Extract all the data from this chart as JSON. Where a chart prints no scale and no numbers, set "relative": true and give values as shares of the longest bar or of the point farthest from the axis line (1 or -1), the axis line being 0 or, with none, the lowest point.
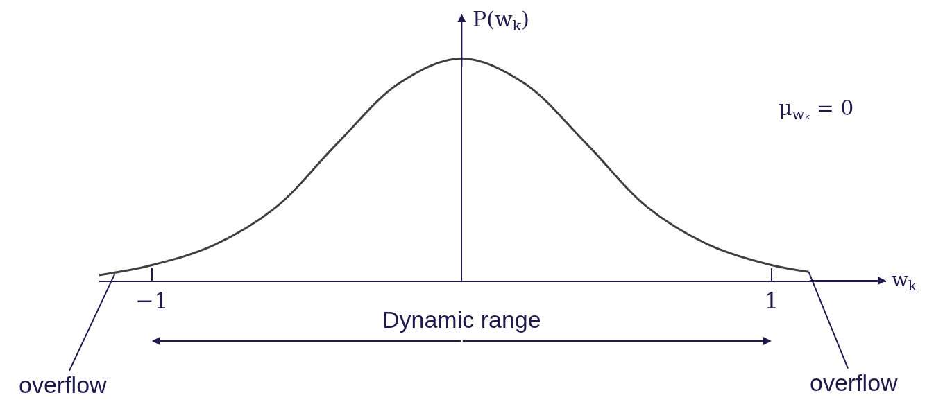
{
  "chart_data": {
    "type": "line",
    "relative": true,
    "xlabel": "w$_{k}$",
    "ylabel": "P(w$_{k}$)",
    "x": [
      -1.17,
      -1.0,
      -0.8,
      -0.6,
      -0.4,
      -0.2,
      0,
      0.2,
      0.4,
      0.6,
      0.8,
      1.0,
      1.12
    ],
    "series": [
      {
        "color": "#404040",
        "values": [
          0.025,
          0.07,
          0.16,
          0.33,
          0.62,
          0.89,
          1,
          0.89,
          0.62,
          0.33,
          0.16,
          0.07,
          0.04
        ]
      }
    ],
    "xlim": [
      -1.17,
      1.37
    ],
    "xticks": [
      {
        "value": -1,
        "label": "−1"
      },
      1
    ],
    "annotations": [
      "μ$_{wₖ}$ = 0",
      "Dynamic range",
      {
        "text": "overflow",
        "x": -1.12,
        "y": 0.03
      },
      {
        "text": "overflow",
        "x": 1.12,
        "y": 0.04
      }
    ],
    "marker": "none",
    "line_style": "solid"
  }
}
